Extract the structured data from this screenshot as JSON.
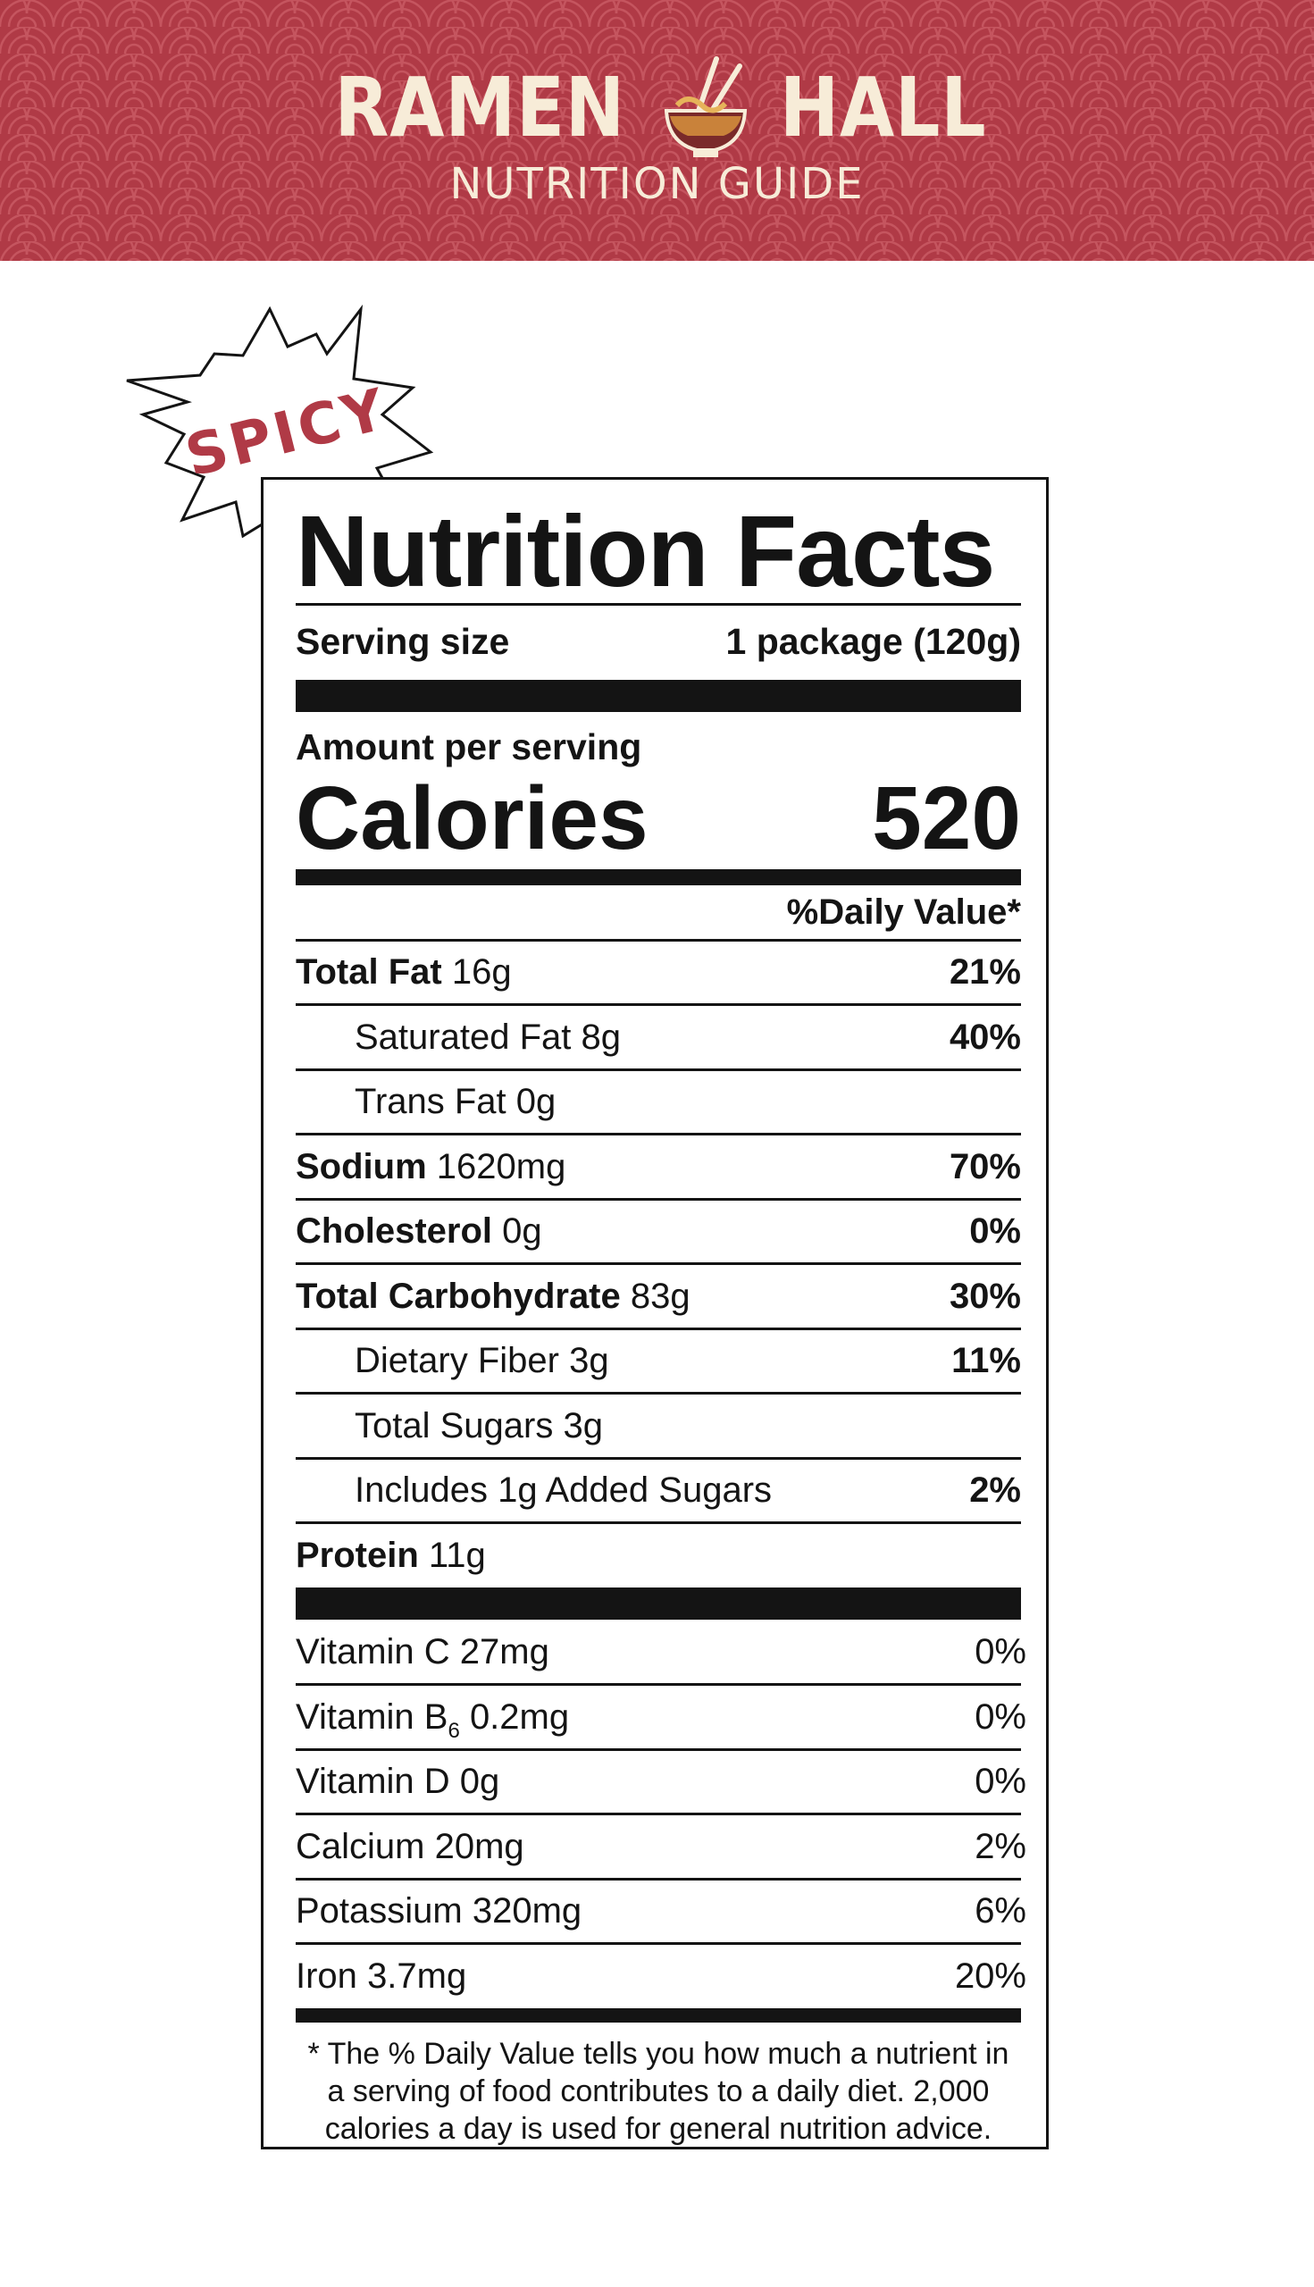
{
  "header": {
    "brand_left": "RAMEN",
    "brand_right": "HALL",
    "logo_icon": "ramen-bowl-chopsticks-icon",
    "subtitle": "NUTRITION GUIDE",
    "bg_color": "#b03a46",
    "text_color": "#f7ecd8"
  },
  "badge": {
    "text": "SPICY",
    "color": "#b03a46",
    "icon": "comic-burst-icon"
  },
  "label": {
    "title": "Nutrition Facts",
    "serving_size_label": "Serving size",
    "serving_size_value": "1 package (120g)",
    "amount_per_serving": "Amount per serving",
    "calories_label": "Calories",
    "calories_value": "520",
    "daily_value_header": "%Daily Value*",
    "nutrients": [
      {
        "name": "Total Fat",
        "amount": "16g",
        "dv": "21%",
        "bold": true,
        "indent": false
      },
      {
        "name": "Saturated Fat",
        "amount": "8g",
        "dv": "40%",
        "bold": false,
        "indent": true
      },
      {
        "name": "Trans Fat",
        "amount": "0g",
        "dv": "",
        "bold": false,
        "indent": true
      },
      {
        "name": "Sodium",
        "amount": "1620mg",
        "dv": "70%",
        "bold": true,
        "indent": false
      },
      {
        "name": "Cholesterol",
        "amount": "0g",
        "dv": "0%",
        "bold": true,
        "indent": false
      },
      {
        "name": "Total Carbohydrate",
        "amount": "83g",
        "dv": "30%",
        "bold": true,
        "indent": false
      },
      {
        "name": "Dietary Fiber",
        "amount": "3g",
        "dv": "11%",
        "bold": false,
        "indent": true
      },
      {
        "name": "Total Sugars",
        "amount": "3g",
        "dv": "",
        "bold": false,
        "indent": true
      },
      {
        "name": "Includes 1g Added Sugars",
        "amount": "",
        "dv": "2%",
        "bold": false,
        "indent": true
      },
      {
        "name": "Protein",
        "amount": "11g",
        "dv": "",
        "bold": true,
        "indent": false
      }
    ],
    "vitamins": [
      {
        "name": "Vitamin C",
        "sub": "",
        "amount": "27mg",
        "dv": "0%"
      },
      {
        "name": "Vitamin B",
        "sub": "6",
        "amount": "0.2mg",
        "dv": "0%"
      },
      {
        "name": "Vitamin D",
        "sub": "",
        "amount": "0g",
        "dv": "0%"
      },
      {
        "name": "Calcium",
        "sub": "",
        "amount": "20mg",
        "dv": "2%"
      },
      {
        "name": "Potassium",
        "sub": "",
        "amount": "320mg",
        "dv": "6%"
      },
      {
        "name": "Iron",
        "sub": "",
        "amount": "3.7mg",
        "dv": "20%"
      }
    ],
    "footnote_lines": [
      "* The % Daily Value tells you how much a nutrient in",
      "a serving of food contributes to a daily diet. 2,000",
      "calories a day is used for general nutrition advice."
    ]
  }
}
